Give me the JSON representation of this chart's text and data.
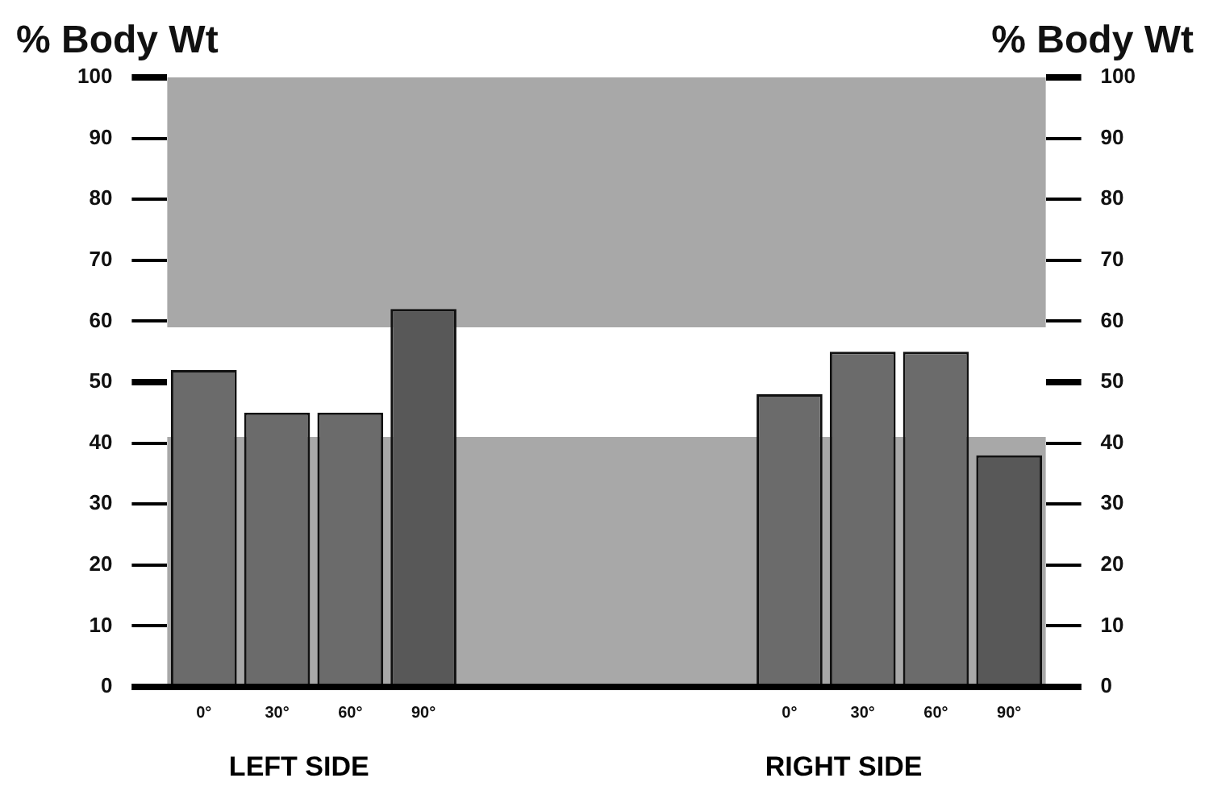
{
  "chart_data": {
    "type": "bar",
    "ylabel": "% Body Wt",
    "y2label": "% Body Wt",
    "categories": [
      "0°",
      "30°",
      "60°",
      "90°",
      null,
      null,
      null,
      null,
      "0°",
      "30°",
      "60°",
      "90°"
    ],
    "values": [
      52,
      45,
      45,
      62,
      null,
      null,
      null,
      null,
      48,
      55,
      55,
      38
    ],
    "colors": [
      "#6b6b6b",
      "#6b6b6b",
      "#6b6b6b",
      "#585858",
      "#6b6b6b",
      "#6b6b6b",
      "#6b6b6b",
      "#6b6b6b",
      "#6b6b6b",
      "#6b6b6b",
      "#6b6b6b",
      "#585858"
    ],
    "ylim": [
      0,
      100
    ],
    "yticks": [
      0,
      10,
      20,
      30,
      40,
      50,
      60,
      70,
      80,
      90,
      100
    ],
    "y2lim": [
      0,
      100
    ],
    "y2ticks": [
      0,
      10,
      20,
      30,
      40,
      50,
      60,
      70,
      80,
      90,
      100
    ],
    "bands": [
      {
        "axis": "y",
        "from": 0,
        "to": 41,
        "color": "#a8a8a8"
      },
      {
        "axis": "y",
        "from": 59,
        "to": 100,
        "color": "#a8a8a8"
      }
    ],
    "annotations": [
      "LEFT SIDE",
      "RIGHT SIDE"
    ],
    "grid": false
  }
}
